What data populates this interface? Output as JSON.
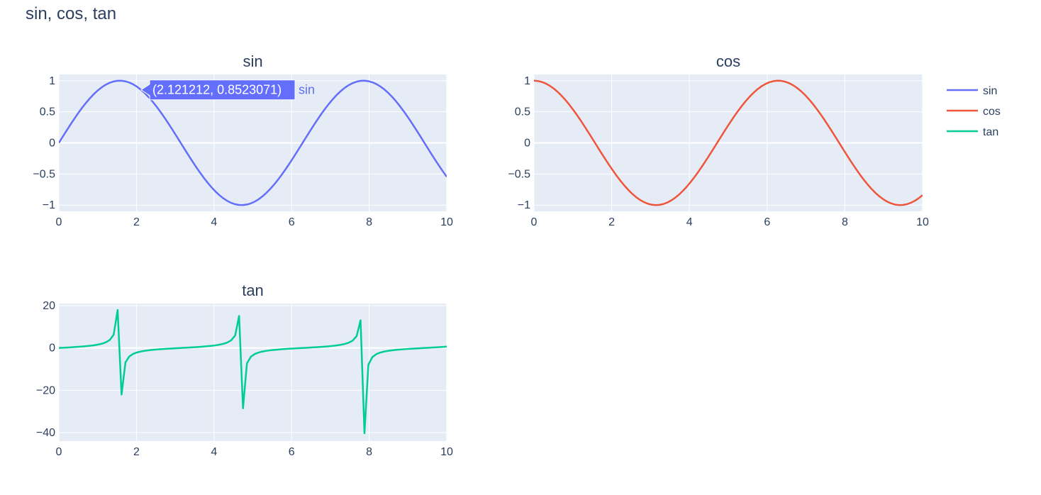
{
  "title": "sin, cos, tan",
  "colors": {
    "sin": "#636efa",
    "cos": "#ef553b",
    "tan": "#00cc96",
    "plot_bg": "#e5ecf6",
    "grid": "#ffffff",
    "text": "#2a3f5f"
  },
  "legend": {
    "position": "top-right",
    "items": [
      "sin",
      "cos",
      "tan"
    ]
  },
  "hover": {
    "series": "sin",
    "x": 2.121212,
    "y": 0.8523071,
    "text": "(2.121212, 0.8523071)",
    "label": "sin"
  },
  "chart_data": [
    {
      "type": "line",
      "title": "sin",
      "series": [
        {
          "name": "sin",
          "func": "sin"
        }
      ],
      "x_range": [
        0,
        10
      ],
      "points": 100,
      "xlim": [
        0,
        10
      ],
      "ylim": [
        -1.1,
        1.1
      ],
      "xticks": [
        0,
        2,
        4,
        6,
        8,
        10
      ],
      "xtick_labels": [
        "0",
        "2",
        "4",
        "6",
        "8",
        "10"
      ],
      "yticks": [
        -1,
        -0.5,
        0,
        0.5,
        1
      ],
      "ytick_labels": [
        "−1",
        "−0.5",
        "0",
        "0.5",
        "1"
      ],
      "grid": true
    },
    {
      "type": "line",
      "title": "cos",
      "series": [
        {
          "name": "cos",
          "func": "cos"
        }
      ],
      "x_range": [
        0,
        10
      ],
      "points": 100,
      "xlim": [
        0,
        10
      ],
      "ylim": [
        -1.1,
        1.1
      ],
      "xticks": [
        0,
        2,
        4,
        6,
        8,
        10
      ],
      "xtick_labels": [
        "0",
        "2",
        "4",
        "6",
        "8",
        "10"
      ],
      "yticks": [
        -1,
        -0.5,
        0,
        0.5,
        1
      ],
      "ytick_labels": [
        "−1",
        "−0.5",
        "0",
        "0.5",
        "1"
      ],
      "grid": true
    },
    {
      "type": "line",
      "title": "tan",
      "series": [
        {
          "name": "tan",
          "func": "tan"
        }
      ],
      "x_range": [
        0,
        10
      ],
      "points": 100,
      "xlim": [
        0,
        10
      ],
      "ylim": [
        -44,
        21
      ],
      "xticks": [
        0,
        2,
        4,
        6,
        8,
        10
      ],
      "xtick_labels": [
        "0",
        "2",
        "4",
        "6",
        "8",
        "10"
      ],
      "yticks": [
        -40,
        -20,
        0,
        20
      ],
      "ytick_labels": [
        "−40",
        "−20",
        "0",
        "20"
      ],
      "grid": true
    }
  ]
}
